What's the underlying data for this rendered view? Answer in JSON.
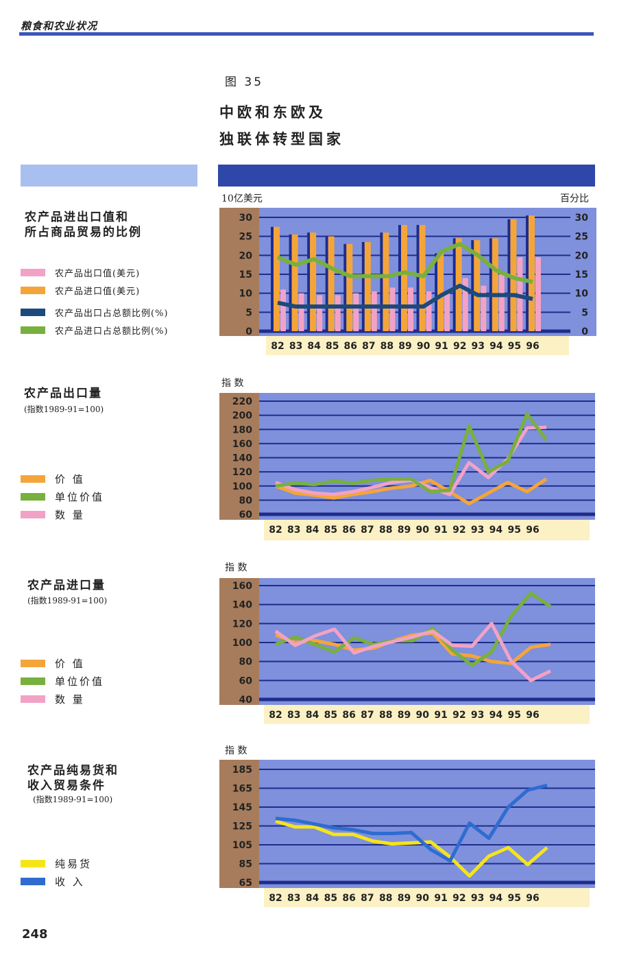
{
  "header": {
    "running_head": "粮食和农业状况",
    "figure": "图 35",
    "title_line1": "中欧和东欧及",
    "title_line2": "独联体转型国家"
  },
  "page_number": "248",
  "colors": {
    "plot_bg": "#7f90dc",
    "grid": "#1e2c8c",
    "axis_bg": "#a67c5c",
    "label_band": "#fbf1c4",
    "orange": "#f4a53a",
    "pink": "#f2a2c6",
    "green": "#78b03e",
    "navy": "#1c4a7c",
    "yellow": "#f6e41a",
    "blue": "#2e6cd0"
  },
  "panels": [
    {
      "title": "农产品进出口值和所占商品贸易的比例",
      "title_lines": [
        "农产品进出口值和",
        "所占商品贸易的比例"
      ],
      "legend": [
        {
          "label": "农产品出口值(美元)",
          "color": "#f2a2c6"
        },
        {
          "label": "农产品进口值(美元)",
          "color": "#f4a53a"
        },
        {
          "label": "农产品出口占总额比例(%)",
          "color": "#1c4a7c"
        },
        {
          "label": "农产品进口占总额比例(%)",
          "color": "#78b03e"
        }
      ]
    },
    {
      "title": "农产品出口量",
      "subtitle": "(指数1989-91=100)",
      "legend": [
        {
          "label": "价 值",
          "color": "#f4a53a"
        },
        {
          "label": "单位价值",
          "color": "#78b03e"
        },
        {
          "label": "数 量",
          "color": "#f2a2c6"
        }
      ]
    },
    {
      "title": "农产品进口量",
      "subtitle": "(指数1989-91=100)",
      "legend": [
        {
          "label": "价 值",
          "color": "#f4a53a"
        },
        {
          "label": "单位价值",
          "color": "#78b03e"
        },
        {
          "label": "数 量",
          "color": "#f2a2c6"
        }
      ]
    },
    {
      "title_lines": [
        "农产品纯易货和",
        "收入贸易条件"
      ],
      "subtitle": "(指数1989-91=100)",
      "legend": [
        {
          "label": "纯易货",
          "color": "#f6e41a"
        },
        {
          "label": "收 入",
          "color": "#2e6cd0"
        }
      ]
    }
  ],
  "chart_data": [
    {
      "type": "bar",
      "ylabel_left": "10亿美元",
      "ylabel_right": "百分比",
      "ylim": [
        0,
        30
      ],
      "yticks": [
        0,
        5,
        10,
        15,
        20,
        25,
        30
      ],
      "categories": [
        "82",
        "83",
        "84",
        "85",
        "86",
        "87",
        "88",
        "89",
        "90",
        "91",
        "92",
        "93",
        "94",
        "95",
        "96"
      ],
      "series": [
        {
          "name": "农产品进口值(美元)",
          "kind": "bar",
          "color": "#f4a53a",
          "values": [
            27.5,
            25.5,
            26,
            25,
            23,
            23.5,
            26,
            28,
            28,
            20.5,
            24.5,
            24,
            24.5,
            29.5,
            30.5
          ]
        },
        {
          "name": "农产品出口值(美元)",
          "kind": "bar",
          "color": "#f2a2c6",
          "values": [
            11,
            10,
            9.5,
            9.5,
            10,
            10.5,
            11.5,
            11.5,
            10.5,
            10,
            14,
            12,
            15,
            19.5,
            19.5
          ]
        },
        {
          "name": "农产品进口占总额比例(%)",
          "kind": "line",
          "color": "#78b03e",
          "values": [
            19.5,
            17.5,
            19,
            16.5,
            14.5,
            14.5,
            14.5,
            15.5,
            14.5,
            21,
            23,
            20,
            16,
            14,
            13
          ]
        },
        {
          "name": "农产品出口占总额比例(%)",
          "kind": "line",
          "color": "#1c4a7c",
          "values": [
            7.5,
            6.5,
            6.5,
            6.5,
            6.5,
            6.5,
            6.5,
            6.5,
            6.5,
            9.5,
            12,
            9.5,
            9.5,
            9.5,
            8.5
          ]
        }
      ]
    },
    {
      "type": "line",
      "ylabel": "指 数",
      "ylim": [
        60,
        220
      ],
      "yticks": [
        60,
        80,
        100,
        120,
        140,
        160,
        180,
        200,
        220
      ],
      "categories": [
        "82",
        "83",
        "84",
        "85",
        "86",
        "87",
        "88",
        "89",
        "90",
        "91",
        "92",
        "93",
        "94",
        "95",
        "96"
      ],
      "series": [
        {
          "name": "价 值",
          "color": "#f4a53a",
          "values": [
            100,
            90,
            87,
            83,
            88,
            92,
            97,
            100,
            108,
            92,
            75,
            90,
            105,
            92,
            110
          ]
        },
        {
          "name": "数 量",
          "color": "#f2a2c6",
          "values": [
            105,
            95,
            90,
            88,
            92,
            98,
            105,
            108,
            98,
            88,
            133,
            112,
            138,
            182,
            183
          ]
        },
        {
          "name": "单位价值",
          "color": "#78b03e",
          "values": [
            100,
            104,
            102,
            107,
            104,
            108,
            110,
            110,
            92,
            94,
            185,
            120,
            135,
            202,
            165
          ]
        }
      ]
    },
    {
      "type": "line",
      "ylabel": "指 数",
      "ylim": [
        40,
        160
      ],
      "yticks": [
        40,
        60,
        80,
        100,
        120,
        140,
        160
      ],
      "categories": [
        "82",
        "83",
        "84",
        "85",
        "86",
        "87",
        "88",
        "89",
        "90",
        "91",
        "92",
        "93",
        "94",
        "95",
        "96"
      ],
      "series": [
        {
          "name": "价 值",
          "color": "#f4a53a",
          "values": [
            108,
            100,
            102,
            98,
            92,
            94,
            102,
            108,
            110,
            88,
            86,
            80,
            78,
            95,
            98
          ]
        },
        {
          "name": "单位价值",
          "color": "#78b03e",
          "values": [
            98,
            106,
            98,
            90,
            105,
            98,
            102,
            102,
            115,
            92,
            76,
            90,
            128,
            152,
            138
          ]
        },
        {
          "name": "数 量",
          "color": "#f2a2c6",
          "values": [
            112,
            97,
            107,
            114,
            89,
            96,
            101,
            106,
            112,
            97,
            96,
            120,
            80,
            60,
            70
          ]
        }
      ]
    },
    {
      "type": "line",
      "ylabel": "指 数",
      "ylim": [
        65,
        185
      ],
      "yticks": [
        65,
        85,
        105,
        125,
        145,
        165,
        185
      ],
      "categories": [
        "82",
        "83",
        "84",
        "85",
        "86",
        "87",
        "88",
        "89",
        "90",
        "91",
        "92",
        "93",
        "94",
        "95",
        "96"
      ],
      "series": [
        {
          "name": "纯易货",
          "color": "#f6e41a",
          "values": [
            130,
            124,
            124,
            116,
            116,
            109,
            106,
            107,
            108,
            92,
            72,
            93,
            102,
            84,
            102
          ]
        },
        {
          "name": "收 入",
          "color": "#2e6cd0",
          "values": [
            133,
            131,
            127,
            123,
            121,
            117,
            117,
            118,
            100,
            88,
            128,
            112,
            145,
            163,
            168
          ]
        }
      ]
    }
  ]
}
